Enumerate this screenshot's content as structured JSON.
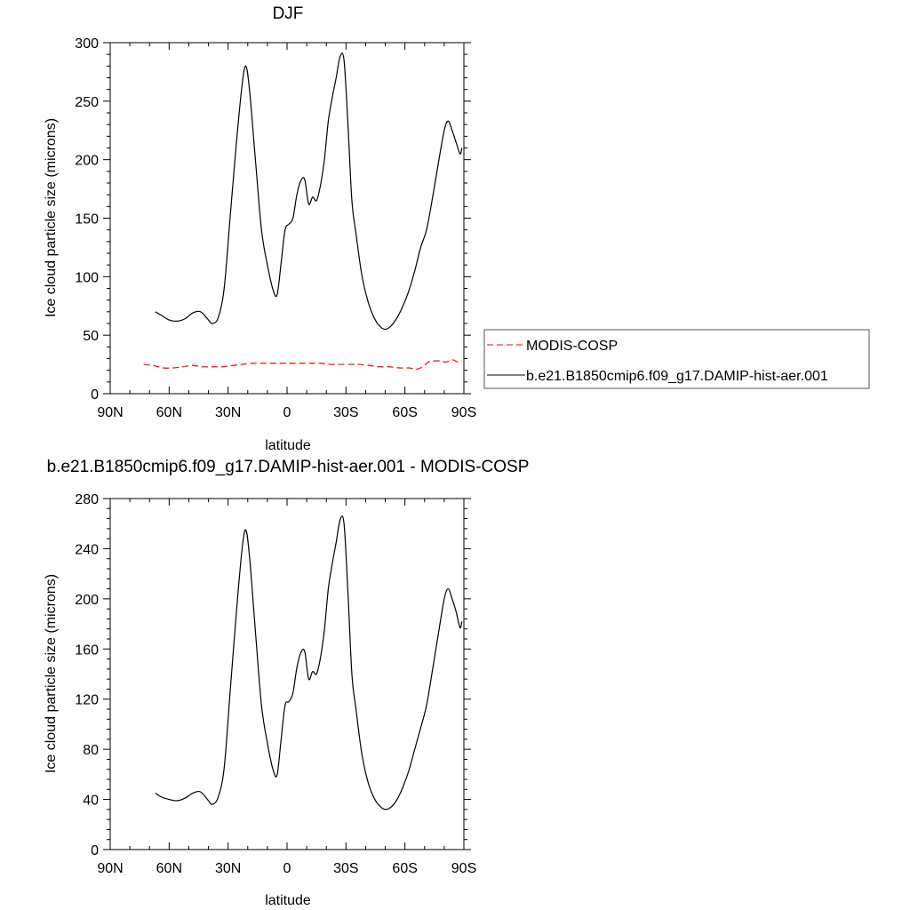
{
  "chart_data": [
    {
      "type": "line",
      "title": "DJF",
      "xlabel": "latitude",
      "ylabel": "Ice cloud particle size (microns)",
      "xlim": [
        90,
        -90
      ],
      "ylim": [
        0,
        300
      ],
      "xticks": [
        90,
        60,
        30,
        0,
        -30,
        -60,
        -90
      ],
      "xtick_labels": [
        "90N",
        "60N",
        "30N",
        "0",
        "30S",
        "60S",
        "90S"
      ],
      "yticks": [
        0,
        50,
        100,
        150,
        200,
        250,
        300
      ],
      "ytick_labels": [
        "0",
        "50",
        "100",
        "150",
        "200",
        "250",
        "300"
      ],
      "legend": {
        "placement": "right"
      },
      "series": [
        {
          "name": "MODIS-COSP",
          "color": "#ff0000",
          "dash": true,
          "x": [
            73,
            68,
            63,
            58,
            53,
            48,
            43,
            38,
            33,
            28,
            23,
            18,
            13,
            8,
            3,
            -2,
            -7,
            -12,
            -17,
            -22,
            -27,
            -32,
            -37,
            -42,
            -47,
            -52,
            -57,
            -62,
            -66,
            -69,
            -72,
            -75,
            -78,
            -81,
            -84,
            -87,
            -89
          ],
          "y": [
            25,
            24,
            22,
            22,
            23,
            24,
            23,
            23,
            23,
            24,
            25,
            26,
            26,
            26,
            26,
            26,
            26,
            26,
            26,
            25,
            25,
            25,
            25,
            24,
            23,
            23,
            22,
            22,
            21,
            23,
            27,
            28,
            28,
            27,
            29,
            27,
            28
          ]
        },
        {
          "name": "b.e21.B1850cmip6.f09_g17.DAMIP-hist-aer.001",
          "color": "#000000",
          "dash": false,
          "x": [
            67,
            64,
            60,
            56,
            52,
            48,
            44,
            40,
            38,
            35,
            32,
            29,
            26,
            23,
            21,
            19,
            16,
            13,
            10,
            7,
            5,
            3,
            1,
            -1,
            -3,
            -5,
            -7,
            -9,
            -11,
            -13,
            -15,
            -17,
            -19,
            -21,
            -23,
            -25,
            -27,
            -29,
            -31,
            -33,
            -35,
            -38,
            -41,
            -44,
            -47,
            -50,
            -53,
            -56,
            -59,
            -62,
            -65,
            -68,
            -71,
            -74,
            -77,
            -80,
            -82,
            -84,
            -86,
            -88,
            -89
          ],
          "y": [
            70,
            67,
            63,
            62,
            64,
            69,
            70,
            63,
            60,
            65,
            90,
            150,
            210,
            262,
            280,
            258,
            198,
            140,
            110,
            88,
            85,
            112,
            140,
            145,
            150,
            170,
            182,
            183,
            162,
            168,
            165,
            178,
            200,
            233,
            253,
            270,
            288,
            285,
            230,
            165,
            138,
            102,
            80,
            66,
            58,
            55,
            58,
            65,
            75,
            88,
            105,
            125,
            140,
            167,
            197,
            225,
            233,
            225,
            215,
            205,
            210
          ]
        }
      ]
    },
    {
      "type": "line",
      "title": "b.e21.B1850cmip6.f09_g17.DAMIP-hist-aer.001 - MODIS-COSP",
      "xlabel": "latitude",
      "ylabel": "Ice cloud particle size (microns)",
      "xlim": [
        90,
        -90
      ],
      "ylim": [
        0,
        280
      ],
      "xticks": [
        90,
        60,
        30,
        0,
        -30,
        -60,
        -90
      ],
      "xtick_labels": [
        "90N",
        "60N",
        "30N",
        "0",
        "30S",
        "60S",
        "90S"
      ],
      "yticks": [
        0,
        40,
        80,
        120,
        160,
        200,
        240,
        280
      ],
      "ytick_labels": [
        "0",
        "40",
        "80",
        "120",
        "160",
        "200",
        "240",
        "280"
      ],
      "series": [
        {
          "name": "",
          "color": "#000000",
          "dash": false,
          "x": [
            67,
            64,
            60,
            56,
            52,
            48,
            44,
            40,
            38,
            35,
            32,
            29,
            26,
            23,
            21,
            19,
            16,
            13,
            10,
            7,
            5,
            3,
            1,
            -1,
            -3,
            -5,
            -7,
            -9,
            -11,
            -13,
            -15,
            -17,
            -19,
            -21,
            -23,
            -25,
            -27,
            -29,
            -31,
            -33,
            -35,
            -38,
            -41,
            -44,
            -47,
            -50,
            -53,
            -56,
            -59,
            -62,
            -65,
            -68,
            -71,
            -74,
            -77,
            -80,
            -82,
            -84,
            -86,
            -88,
            -89
          ],
          "y": [
            45,
            42,
            40,
            39,
            41,
            45,
            46,
            39,
            36,
            42,
            65,
            125,
            185,
            238,
            255,
            232,
            172,
            115,
            85,
            63,
            60,
            88,
            115,
            118,
            125,
            145,
            157,
            158,
            136,
            142,
            140,
            153,
            175,
            208,
            228,
            245,
            263,
            260,
            205,
            140,
            113,
            77,
            55,
            42,
            35,
            32,
            34,
            40,
            50,
            63,
            80,
            97,
            115,
            143,
            172,
            200,
            208,
            200,
            190,
            177,
            182
          ]
        }
      ]
    }
  ]
}
